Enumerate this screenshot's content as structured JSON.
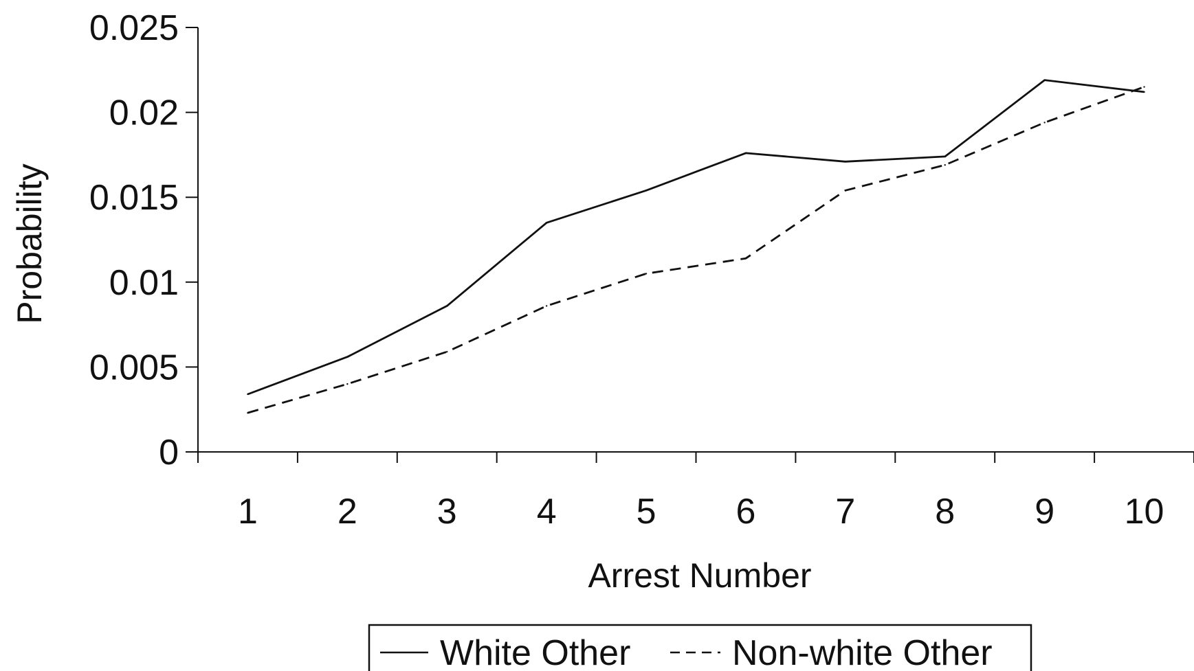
{
  "chart_data": {
    "type": "line",
    "title": "",
    "xlabel": "Arrest Number",
    "ylabel": "Probability",
    "categories": [
      "1",
      "2",
      "3",
      "4",
      "5",
      "6",
      "7",
      "8",
      "9",
      "10"
    ],
    "ylim": [
      0,
      0.025
    ],
    "yticks": [
      "0",
      "0.005",
      "0.01",
      "0.015",
      "0.02",
      "0.025"
    ],
    "grid": false,
    "legend_position": "bottom",
    "series": [
      {
        "name": "White Other",
        "style": "solid",
        "color": "#111111",
        "values": [
          0.0034,
          0.0056,
          0.0086,
          0.0135,
          0.0154,
          0.0176,
          0.0171,
          0.0174,
          0.0219,
          0.0212
        ]
      },
      {
        "name": "Non-white Other",
        "style": "dashed",
        "color": "#111111",
        "values": [
          0.0023,
          0.004,
          0.0059,
          0.0086,
          0.0105,
          0.0114,
          0.0154,
          0.0169,
          0.0194,
          0.0215
        ]
      }
    ]
  }
}
